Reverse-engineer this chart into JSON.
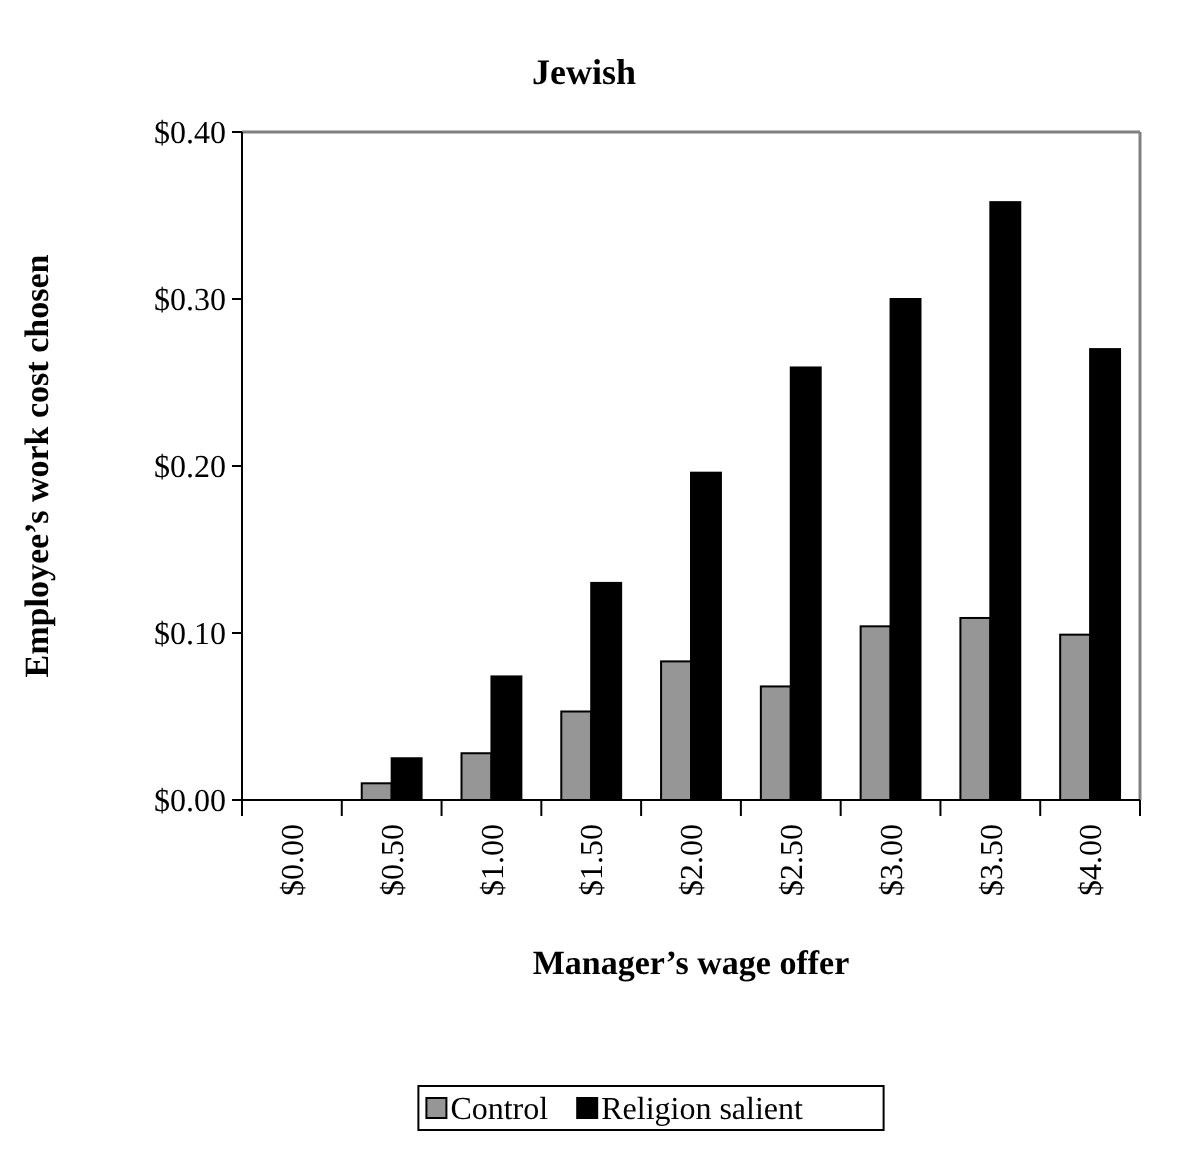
{
  "chart_data": {
    "type": "bar",
    "title": "Jewish",
    "xlabel": "Manager’s wage offer",
    "ylabel": "Employee’s work cost chosen",
    "categories": [
      "$0.00",
      "$0.50",
      "$1.00",
      "$1.50",
      "$2.00",
      "$2.50",
      "$3.00",
      "$3.50",
      "$4.00"
    ],
    "series": [
      {
        "name": "Control",
        "color": "#969696",
        "values": [
          0,
          0.01,
          0.028,
          0.053,
          0.083,
          0.068,
          0.104,
          0.109,
          0.099
        ]
      },
      {
        "name": "Religion salient",
        "color": "#000000",
        "values": [
          0,
          0.025,
          0.074,
          0.13,
          0.196,
          0.259,
          0.3,
          0.358,
          0.27
        ]
      }
    ],
    "ylim": [
      0,
      0.4
    ],
    "yticks": [
      {
        "value": 0,
        "label": "$0.00"
      },
      {
        "value": 0.1,
        "label": "$0.10"
      },
      {
        "value": 0.2,
        "label": "$0.20"
      },
      {
        "value": 0.3,
        "label": "$0.30"
      },
      {
        "value": 0.4,
        "label": "$0.40"
      }
    ],
    "grid": false,
    "legend": "bottom"
  }
}
